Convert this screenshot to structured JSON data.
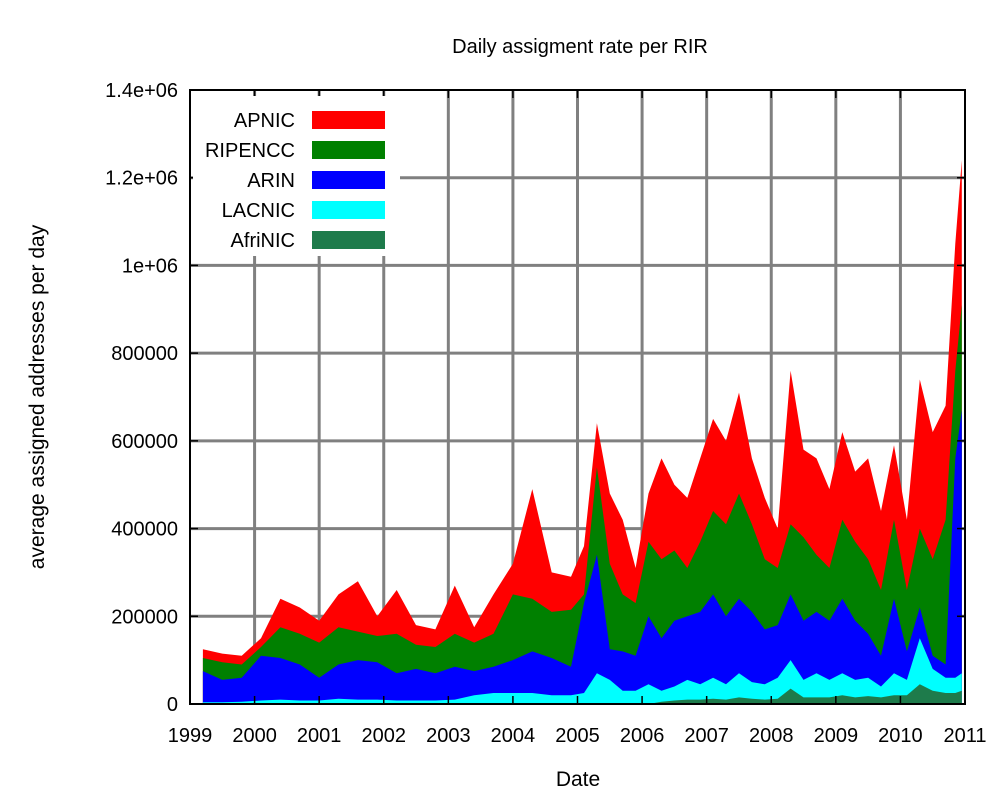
{
  "chart_data": {
    "type": "area",
    "stacked": true,
    "title": "Daily assigment rate per RIR",
    "xlabel": "Date",
    "ylabel": "average assigned addresses per day",
    "xlim": [
      1999,
      2011
    ],
    "ylim": [
      0,
      1400000
    ],
    "x_ticks": [
      1999,
      2000,
      2001,
      2002,
      2003,
      2004,
      2005,
      2006,
      2007,
      2008,
      2009,
      2010,
      2011
    ],
    "x_tick_labels": [
      "1999",
      "2000",
      "2001",
      "2002",
      "2003",
      "2004",
      "2005",
      "2006",
      "2007",
      "2008",
      "2009",
      "2010",
      "2011"
    ],
    "y_ticks": [
      0,
      200000,
      400000,
      600000,
      800000,
      1000000,
      1200000,
      1400000
    ],
    "y_tick_labels": [
      "0",
      "200000",
      "400000",
      "600000",
      "800000",
      "1e+06",
      "1.2e+06",
      "1.4e+06"
    ],
    "grid": true,
    "legend_position": "top-left",
    "x": [
      1999.2,
      1999.5,
      1999.8,
      2000.1,
      2000.4,
      2000.7,
      2001.0,
      2001.3,
      2001.6,
      2001.9,
      2002.2,
      2002.5,
      2002.8,
      2003.1,
      2003.4,
      2003.7,
      2004.0,
      2004.3,
      2004.6,
      2004.9,
      2005.1,
      2005.3,
      2005.5,
      2005.7,
      2005.9,
      2006.1,
      2006.3,
      2006.5,
      2006.7,
      2006.9,
      2007.1,
      2007.3,
      2007.5,
      2007.7,
      2007.9,
      2008.1,
      2008.3,
      2008.5,
      2008.7,
      2008.9,
      2009.1,
      2009.3,
      2009.5,
      2009.7,
      2009.9,
      2010.1,
      2010.3,
      2010.5,
      2010.7,
      2010.85,
      2010.95
    ],
    "series": [
      {
        "name": "APNIC",
        "color": "#ff0000",
        "cumulative_values": [
          125000,
          115000,
          110000,
          150000,
          240000,
          220000,
          190000,
          250000,
          280000,
          200000,
          260000,
          180000,
          170000,
          270000,
          175000,
          250000,
          320000,
          490000,
          300000,
          290000,
          360000,
          640000,
          480000,
          420000,
          310000,
          480000,
          560000,
          500000,
          470000,
          560000,
          650000,
          600000,
          710000,
          560000,
          470000,
          400000,
          760000,
          580000,
          560000,
          490000,
          620000,
          530000,
          560000,
          440000,
          590000,
          420000,
          740000,
          620000,
          680000,
          1050000,
          1240000
        ]
      },
      {
        "name": "RIPENCC",
        "color": "#008000",
        "cumulative_values": [
          105000,
          95000,
          90000,
          130000,
          175000,
          160000,
          140000,
          175000,
          165000,
          155000,
          160000,
          135000,
          130000,
          160000,
          140000,
          160000,
          250000,
          240000,
          210000,
          215000,
          250000,
          540000,
          320000,
          250000,
          230000,
          370000,
          330000,
          350000,
          310000,
          370000,
          440000,
          410000,
          480000,
          410000,
          330000,
          310000,
          410000,
          380000,
          340000,
          310000,
          420000,
          370000,
          330000,
          260000,
          420000,
          260000,
          400000,
          330000,
          420000,
          760000,
          910000
        ]
      },
      {
        "name": "ARIN",
        "color": "#0000ff",
        "cumulative_values": [
          75000,
          55000,
          60000,
          110000,
          105000,
          90000,
          60000,
          90000,
          100000,
          95000,
          70000,
          80000,
          70000,
          85000,
          75000,
          85000,
          100000,
          120000,
          105000,
          85000,
          230000,
          340000,
          125000,
          120000,
          110000,
          200000,
          150000,
          190000,
          200000,
          210000,
          250000,
          200000,
          240000,
          210000,
          170000,
          180000,
          250000,
          190000,
          210000,
          190000,
          240000,
          190000,
          160000,
          110000,
          240000,
          120000,
          220000,
          110000,
          90000,
          560000,
          670000
        ]
      },
      {
        "name": "LACNIC",
        "color": "#00ffff",
        "cumulative_values": [
          4000,
          4000,
          5000,
          8000,
          10000,
          8000,
          8000,
          12000,
          10000,
          10000,
          8000,
          8000,
          8000,
          10000,
          20000,
          25000,
          25000,
          25000,
          20000,
          20000,
          25000,
          70000,
          55000,
          30000,
          30000,
          45000,
          30000,
          40000,
          55000,
          45000,
          60000,
          45000,
          70000,
          50000,
          45000,
          60000,
          100000,
          55000,
          70000,
          55000,
          70000,
          55000,
          60000,
          40000,
          70000,
          55000,
          150000,
          80000,
          60000,
          60000,
          70000
        ]
      },
      {
        "name": "AfriNIC",
        "color": "#1e7b4b",
        "cumulative_values": [
          0,
          0,
          0,
          0,
          0,
          0,
          0,
          0,
          0,
          0,
          0,
          0,
          0,
          0,
          0,
          0,
          0,
          0,
          0,
          0,
          0,
          0,
          0,
          0,
          0,
          0,
          5000,
          8000,
          10000,
          10000,
          12000,
          10000,
          15000,
          12000,
          10000,
          12000,
          35000,
          15000,
          15000,
          15000,
          20000,
          15000,
          18000,
          15000,
          20000,
          20000,
          45000,
          30000,
          25000,
          25000,
          30000
        ]
      }
    ]
  }
}
